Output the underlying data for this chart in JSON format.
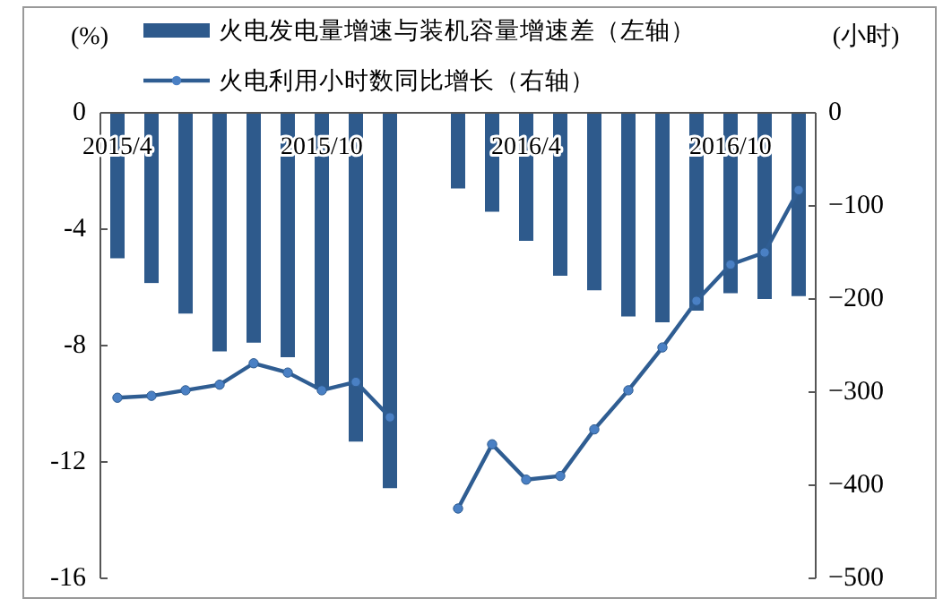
{
  "chart_data": {
    "type": "bar",
    "ylabel": "(%)",
    "y2label": "(小时)",
    "categories": [
      "2015/4",
      null,
      null,
      null,
      null,
      null,
      "2015/10",
      null,
      null,
      null,
      null,
      null,
      "2016/4",
      null,
      null,
      null,
      null,
      null,
      "2016/10",
      null,
      null
    ],
    "series": [
      {
        "name": "火电发电量增速与装机容量增速差（左轴）",
        "color": "#2e5a8c",
        "values": [
          -5.0,
          -5.85,
          -6.9,
          -8.2,
          -7.9,
          -8.4,
          -9.5,
          -11.3,
          -12.9,
          null,
          -2.6,
          -3.4,
          -4.4,
          -5.6,
          -6.1,
          -7.0,
          -7.2,
          -6.8,
          -6.2,
          -6.4,
          -6.3
        ]
      },
      {
        "name": "火电利用小时数同比增长（右轴）",
        "type": "line",
        "axis": "y2",
        "color": "#2f5d92",
        "values": [
          -306,
          -304,
          -298,
          -292,
          -269,
          -279,
          -298,
          -289,
          -327,
          null,
          -425,
          -356,
          -394,
          -390,
          -340,
          -298,
          -252,
          -202,
          -163,
          -150,
          -83
        ]
      }
    ],
    "ylim": [
      -16,
      0
    ],
    "yticks": [
      0,
      -4,
      -8,
      -12,
      -16
    ],
    "y2lim": [
      -500,
      0
    ],
    "y2ticks": [
      0,
      {
        "value": -100,
        "label": "−100"
      },
      {
        "value": -200,
        "label": "−200"
      },
      {
        "value": -300,
        "label": "−300"
      },
      {
        "value": -400,
        "label": "−400"
      },
      {
        "value": -500,
        "label": "−500"
      }
    ],
    "legend": "top",
    "marker": "circle"
  }
}
